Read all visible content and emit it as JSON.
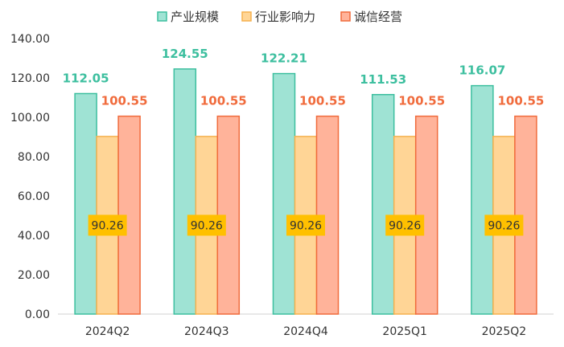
{
  "chart_data": {
    "type": "bar",
    "categories": [
      "2024Q2",
      "2024Q3",
      "2024Q4",
      "2025Q1",
      "2025Q2"
    ],
    "series": [
      {
        "name": "产业规模",
        "values": [
          112.05,
          124.55,
          122.21,
          111.53,
          116.07
        ],
        "labels": [
          "112.05",
          "124.55",
          "122.21",
          "111.53",
          "116.07"
        ],
        "fill": "#9fe3d4",
        "stroke": "#3dbf9f",
        "label_color": "#3dbf9f"
      },
      {
        "name": "行业影响力",
        "values": [
          90.26,
          90.26,
          90.26,
          90.26,
          90.26
        ],
        "labels": [
          "90.26",
          "90.26",
          "90.26",
          "90.26",
          "90.26"
        ],
        "fill": "#ffd596",
        "stroke": "#f5b14e",
        "label_color": "#333333",
        "label_bg": "#ffc000"
      },
      {
        "name": "诚信经营",
        "values": [
          100.55,
          100.55,
          100.55,
          100.55,
          100.55
        ],
        "labels": [
          "100.55",
          "100.55",
          "100.55",
          "100.55",
          "100.55"
        ],
        "fill": "#ffb39a",
        "stroke": "#f06b3c",
        "label_color": "#f06b3c"
      }
    ],
    "ylim": [
      0,
      140
    ],
    "yticks": [
      "0.00",
      "20.00",
      "40.00",
      "60.00",
      "80.00",
      "100.00",
      "120.00",
      "140.00"
    ],
    "grid": false,
    "legend_position": "top"
  }
}
